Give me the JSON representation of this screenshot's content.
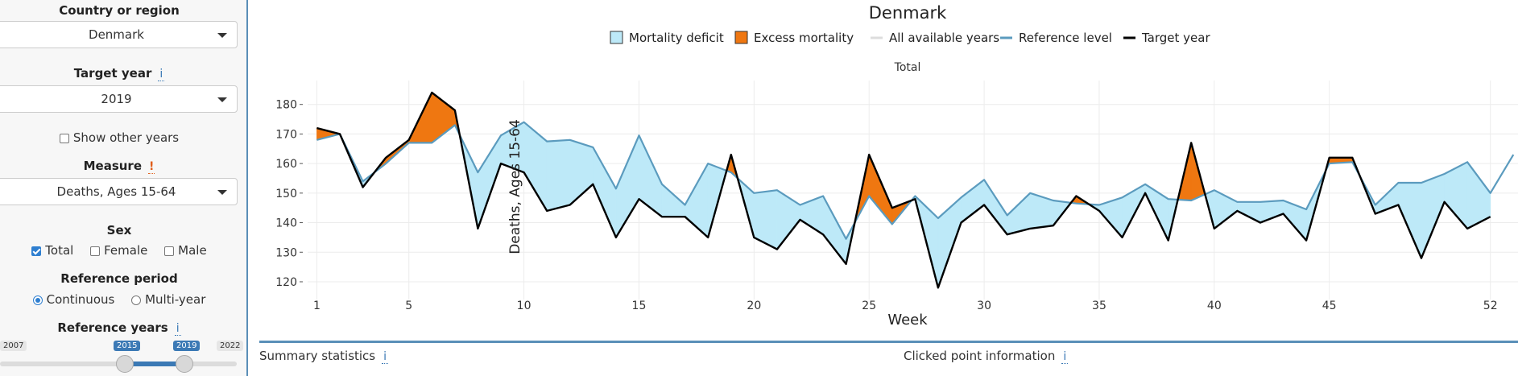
{
  "sidebar": {
    "country_label": "Country or region",
    "country_value": "Denmark",
    "target_label": "Target year",
    "target_info": "i",
    "target_value": "2019",
    "show_other": "Show other years",
    "measure_label": "Measure",
    "measure_warn": "!",
    "measure_value": "Deaths, Ages 15-64",
    "sex_label": "Sex",
    "sex_options": [
      {
        "label": "Total",
        "checked": true
      },
      {
        "label": "Female",
        "checked": false
      },
      {
        "label": "Male",
        "checked": false
      }
    ],
    "ref_period_label": "Reference period",
    "ref_period_options": [
      {
        "label": "Continuous",
        "selected": true
      },
      {
        "label": "Multi-year",
        "selected": false
      }
    ],
    "ref_years_label": "Reference years",
    "ref_years_info": "i",
    "slider": {
      "min": "2007",
      "max": "2022",
      "from": "2015",
      "to": "2019",
      "min_value": 2007,
      "max_value": 2022,
      "from_value": 2015,
      "to_value": 2019
    }
  },
  "chart_data": {
    "type": "area",
    "title": "Denmark",
    "subtitle": "Total",
    "xlabel": "Week",
    "ylabel": "Deaths, Ages 15-64",
    "xlim": [
      0.6,
      53.2
    ],
    "ylim": [
      114,
      187
    ],
    "x_ticks": [
      1,
      5,
      10,
      15,
      20,
      25,
      30,
      35,
      40,
      45,
      52
    ],
    "y_ticks": [
      120,
      130,
      140,
      150,
      160,
      170,
      180
    ],
    "grid": true,
    "legend": [
      {
        "label": "Mortality deficit",
        "kind": "fill",
        "color": "#bde9f8",
        "border": "#333333"
      },
      {
        "label": "Excess mortality",
        "kind": "fill",
        "color": "#ef7711",
        "border": "#333333"
      },
      {
        "label": "All available years",
        "kind": "line",
        "color": "#dddddd"
      },
      {
        "label": "Reference level",
        "kind": "line",
        "color": "#5b9bbe"
      },
      {
        "label": "Target year",
        "kind": "line",
        "color": "#000000"
      }
    ],
    "series": [
      {
        "name": "Reference level",
        "x": [
          1,
          2,
          3,
          4,
          5,
          6,
          7,
          8,
          9,
          10,
          11,
          12,
          13,
          14,
          15,
          16,
          17,
          18,
          19,
          20,
          21,
          22,
          23,
          24,
          25,
          26,
          27,
          28,
          29,
          30,
          31,
          32,
          33,
          34,
          35,
          36,
          37,
          38,
          39,
          40,
          41,
          42,
          43,
          44,
          45,
          46,
          47,
          48,
          49,
          50,
          51,
          52,
          53
        ],
        "values": [
          168,
          170,
          154,
          160,
          167,
          167,
          173,
          157,
          169.5,
          174,
          167.5,
          168,
          165.5,
          151.5,
          169.5,
          153,
          146,
          160,
          157,
          150,
          151,
          146,
          149,
          134.5,
          149,
          139.5,
          149,
          141.5,
          148.5,
          154.5,
          142.5,
          150,
          147.5,
          146.5,
          146,
          148.5,
          153,
          148,
          147.5,
          151,
          147,
          147,
          147.5,
          144.5,
          160,
          160.5,
          146,
          153.5,
          153.5,
          156.5,
          160.5,
          150,
          163
        ]
      },
      {
        "name": "Target year",
        "x": [
          1,
          2,
          3,
          4,
          5,
          6,
          7,
          8,
          9,
          10,
          11,
          12,
          13,
          14,
          15,
          16,
          17,
          18,
          19,
          20,
          21,
          22,
          23,
          24,
          25,
          26,
          27,
          28,
          29,
          30,
          31,
          32,
          33,
          34,
          35,
          36,
          37,
          38,
          39,
          40,
          41,
          42,
          43,
          44,
          45,
          46,
          47,
          48,
          49,
          50,
          51,
          52
        ],
        "values": [
          172,
          170,
          152,
          162,
          168,
          184,
          178,
          138,
          160,
          157,
          144,
          146,
          153,
          135,
          148,
          142,
          142,
          135,
          163,
          135,
          131,
          141,
          136,
          126,
          163,
          145,
          148,
          118,
          140,
          146,
          136,
          138,
          139,
          149,
          144,
          135,
          150,
          134,
          167,
          138,
          144,
          140,
          143,
          134,
          162,
          162,
          143,
          146,
          128,
          147,
          138,
          142
        ]
      }
    ]
  },
  "footer": {
    "summary_label": "Summary statistics",
    "summary_info": "i",
    "clicked_label": "Clicked point information",
    "clicked_info": "i"
  }
}
